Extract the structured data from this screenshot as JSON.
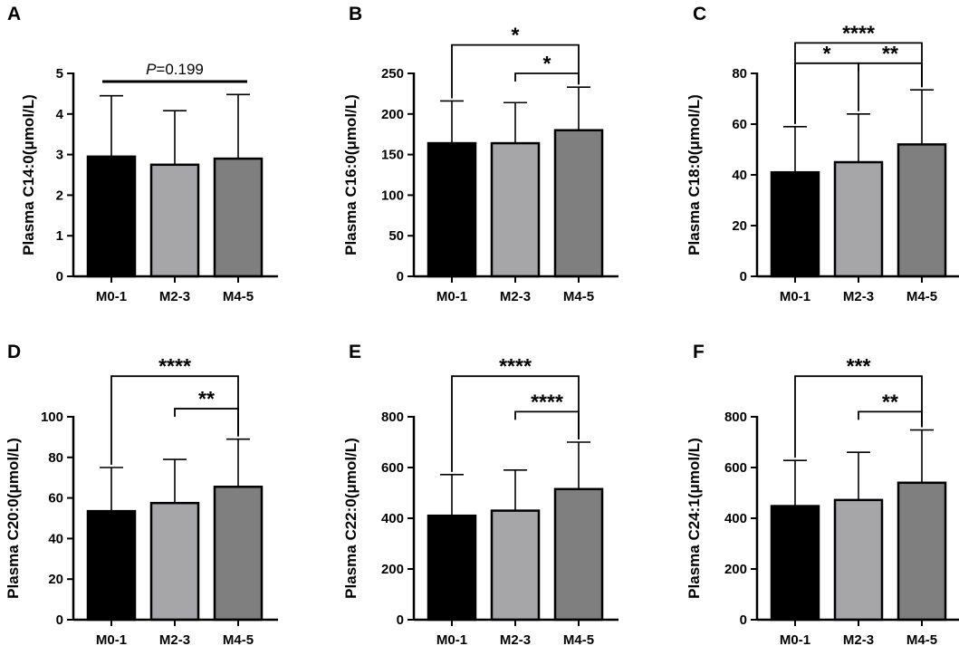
{
  "colors": {
    "M0-1": "#000000",
    "M2-3": "#a6a6a8",
    "M4-5": "#7f7f7f"
  },
  "chart_data": [
    {
      "type": "bar",
      "panel": "A",
      "ylabel": "Plasma C14:0(μmol/L)",
      "categories": [
        "M0-1",
        "M2-3",
        "M4-5"
      ],
      "values": [
        2.95,
        2.75,
        2.9
      ],
      "error_upper": [
        4.45,
        4.08,
        4.48
      ],
      "ylim": [
        0,
        5
      ],
      "yticks": [
        0,
        1,
        2,
        3,
        4,
        5
      ],
      "annotations": [
        {
          "type": "line",
          "from": 0,
          "to": 2,
          "y": 4.8,
          "prefix": "P",
          "text": "=0.199"
        }
      ]
    },
    {
      "type": "bar",
      "panel": "B",
      "ylabel": "Plasma C16:0(μmol/L)",
      "categories": [
        "M0-1",
        "M2-3",
        "M4-5"
      ],
      "values": [
        164,
        164,
        180
      ],
      "error_upper": [
        216,
        214,
        233
      ],
      "ylim": [
        0,
        250
      ],
      "yticks": [
        0,
        50,
        100,
        150,
        200,
        250
      ],
      "annotations": [
        {
          "type": "bracket",
          "from": 0,
          "to": 2,
          "y": 285,
          "text": "*"
        },
        {
          "type": "bracket",
          "from": 1,
          "to": 2,
          "y": 250,
          "text": "*"
        }
      ]
    },
    {
      "type": "bar",
      "panel": "C",
      "ylabel": "Plasma C18:0(μmol/L)",
      "categories": [
        "M0-1",
        "M2-3",
        "M4-5"
      ],
      "values": [
        41,
        45,
        52
      ],
      "error_upper": [
        59,
        64,
        73.5
      ],
      "ylim": [
        0,
        80
      ],
      "yticks": [
        0,
        20,
        40,
        60,
        80
      ],
      "annotations": [
        {
          "type": "bracket",
          "from": 0,
          "to": 2,
          "y": 92,
          "text": "****"
        },
        {
          "type": "bracket",
          "from": 0,
          "to": 1,
          "y": 84,
          "text": "*"
        },
        {
          "type": "bracket",
          "from": 1,
          "to": 2,
          "y": 84,
          "text": "**"
        }
      ]
    },
    {
      "type": "bar",
      "panel": "D",
      "ylabel": "Plasma C20:0(μmol/L)",
      "categories": [
        "M0-1",
        "M2-3",
        "M4-5"
      ],
      "values": [
        53.5,
        57.5,
        65.5
      ],
      "error_upper": [
        75,
        79,
        89
      ],
      "ylim": [
        0,
        100
      ],
      "yticks": [
        0,
        20,
        40,
        60,
        80,
        100
      ],
      "annotations": [
        {
          "type": "bracket",
          "from": 0,
          "to": 2,
          "y": 120,
          "text": "****"
        },
        {
          "type": "bracket",
          "from": 1,
          "to": 2,
          "y": 104,
          "text": "**"
        }
      ]
    },
    {
      "type": "bar",
      "panel": "E",
      "ylabel": "Plasma C22:0(μmol/L)",
      "categories": [
        "M0-1",
        "M2-3",
        "M4-5"
      ],
      "values": [
        410,
        430,
        515
      ],
      "error_upper": [
        572,
        590,
        700
      ],
      "ylim": [
        0,
        800
      ],
      "yticks": [
        0,
        200,
        400,
        600,
        800
      ],
      "annotations": [
        {
          "type": "bracket",
          "from": 0,
          "to": 2,
          "y": 960,
          "text": "****"
        },
        {
          "type": "bracket",
          "from": 1,
          "to": 2,
          "y": 820,
          "text": "****"
        }
      ]
    },
    {
      "type": "bar",
      "panel": "F",
      "ylabel": "Plasma C24:1(μmol/L)",
      "categories": [
        "M0-1",
        "M2-3",
        "M4-5"
      ],
      "values": [
        448,
        472,
        540
      ],
      "error_upper": [
        628,
        660,
        748
      ],
      "ylim": [
        0,
        800
      ],
      "yticks": [
        0,
        200,
        400,
        600,
        800
      ],
      "annotations": [
        {
          "type": "bracket",
          "from": 0,
          "to": 2,
          "y": 960,
          "text": "***"
        },
        {
          "type": "bracket",
          "from": 1,
          "to": 2,
          "y": 820,
          "text": "**"
        }
      ]
    }
  ]
}
